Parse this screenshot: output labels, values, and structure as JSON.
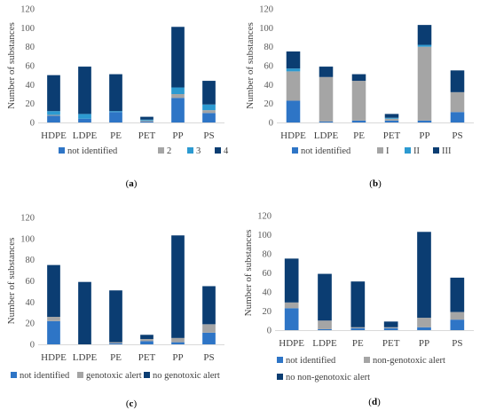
{
  "chart_data": [
    {
      "type": "bar",
      "stacked": true,
      "panel_label": "a",
      "ylabel": "Number of substances",
      "ylim": [
        0,
        120
      ],
      "yticks": [
        0,
        20,
        40,
        60,
        80,
        100,
        120
      ],
      "categories": [
        "HDPE",
        "LDPE",
        "PE",
        "PET",
        "PP",
        "PS"
      ],
      "series": [
        {
          "name": "not identified",
          "color": "#2E75C6",
          "values": [
            7,
            4,
            11,
            1,
            26,
            10
          ]
        },
        {
          "name": "2",
          "color": "#A5A5A5",
          "values": [
            1,
            0,
            0,
            1,
            4,
            3
          ]
        },
        {
          "name": "3",
          "color": "#2C9AD1",
          "values": [
            4,
            5,
            1,
            1,
            7,
            6
          ]
        },
        {
          "name": "4",
          "color": "#0B3D72",
          "values": [
            38,
            50,
            39,
            3,
            64,
            25
          ]
        }
      ],
      "legend_position": "bottom"
    },
    {
      "type": "bar",
      "stacked": true,
      "panel_label": "b",
      "ylabel": "Number of substances",
      "ylim": [
        0,
        120
      ],
      "yticks": [
        0,
        20,
        40,
        60,
        80,
        100,
        120
      ],
      "categories": [
        "HDPE",
        "LDPE",
        "PE",
        "PET",
        "PP",
        "PS"
      ],
      "series": [
        {
          "name": "not identified",
          "color": "#2E75C6",
          "values": [
            23,
            1,
            2,
            2,
            2,
            11
          ]
        },
        {
          "name": "I",
          "color": "#A5A5A5",
          "values": [
            31,
            47,
            42,
            2,
            78,
            21
          ]
        },
        {
          "name": "II",
          "color": "#2C9AD1",
          "values": [
            3,
            0,
            0,
            1,
            2,
            0
          ]
        },
        {
          "name": "III",
          "color": "#0B3D72",
          "values": [
            18,
            11,
            7,
            4,
            21,
            23
          ]
        }
      ],
      "legend_position": "bottom"
    },
    {
      "type": "bar",
      "stacked": true,
      "panel_label": "c",
      "ylabel": "Number of substances",
      "ylim": [
        0,
        120
      ],
      "yticks": [
        0,
        20,
        40,
        60,
        80,
        100,
        120
      ],
      "categories": [
        "HDPE",
        "LDPE",
        "PE",
        "PET",
        "PP",
        "PS"
      ],
      "series": [
        {
          "name": "not identified",
          "color": "#2E75C6",
          "values": [
            22,
            0,
            1,
            3,
            2,
            11
          ]
        },
        {
          "name": "genotoxic alert",
          "color": "#A5A5A5",
          "values": [
            4,
            0,
            1,
            2,
            4,
            8
          ]
        },
        {
          "name": "no genotoxic alert",
          "color": "#0B3D72",
          "values": [
            49,
            59,
            49,
            4,
            97,
            36
          ]
        }
      ],
      "legend_position": "bottom"
    },
    {
      "type": "bar",
      "stacked": true,
      "panel_label": "d",
      "ylabel": "Number of substances",
      "ylim": [
        0,
        120
      ],
      "yticks": [
        0,
        20,
        40,
        60,
        80,
        100,
        120
      ],
      "categories": [
        "HDPE",
        "LDPE",
        "PE",
        "PET",
        "PP",
        "PS"
      ],
      "series": [
        {
          "name": "not identified",
          "color": "#2E75C6",
          "values": [
            23,
            1,
            2,
            2,
            3,
            11
          ]
        },
        {
          "name": "non-genotoxic alert",
          "color": "#A5A5A5",
          "values": [
            6,
            9,
            1,
            1,
            10,
            8
          ]
        },
        {
          "name": "no non-genotoxic alert",
          "color": "#0B3D72",
          "values": [
            46,
            49,
            48,
            6,
            90,
            36
          ]
        }
      ],
      "legend_position": "bottom"
    }
  ]
}
